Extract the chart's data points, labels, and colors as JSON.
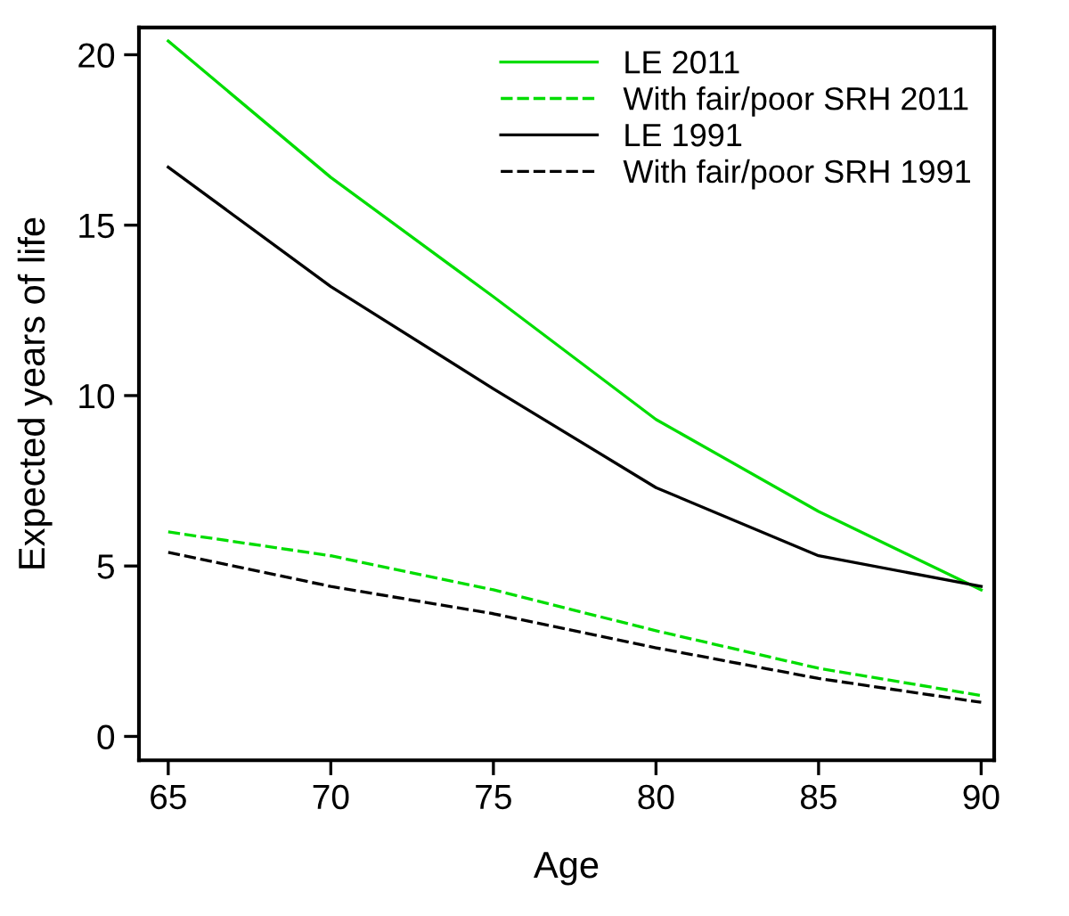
{
  "chart_data": {
    "type": "line",
    "xlabel": "Age",
    "ylabel": "Expected years of life",
    "x": [
      65,
      70,
      75,
      80,
      85,
      90
    ],
    "series": [
      {
        "name": "LE 2011",
        "color": "#00dd00",
        "line_style": "solid",
        "values": [
          20.4,
          16.4,
          12.9,
          9.3,
          6.6,
          4.3
        ]
      },
      {
        "name": "With fair/poor SRH 2011",
        "color": "#00dd00",
        "line_style": "dashed",
        "values": [
          6.0,
          5.3,
          4.3,
          3.1,
          2.0,
          1.2
        ]
      },
      {
        "name": "LE 1991",
        "color": "#000000",
        "line_style": "solid",
        "values": [
          16.7,
          13.2,
          10.2,
          7.3,
          5.3,
          4.4
        ]
      },
      {
        "name": "With fair/poor SRH 1991",
        "color": "#000000",
        "line_style": "dashed",
        "values": [
          5.4,
          4.4,
          3.6,
          2.6,
          1.7,
          1.0
        ]
      }
    ],
    "xlim": [
      64.1,
      90.4
    ],
    "ylim": [
      -0.7,
      20.8
    ],
    "xticks": [
      65,
      70,
      75,
      80,
      85,
      90
    ],
    "yticks": [
      0,
      5,
      10,
      15,
      20
    ],
    "grid": false,
    "legend": "top right",
    "marker": "none"
  }
}
